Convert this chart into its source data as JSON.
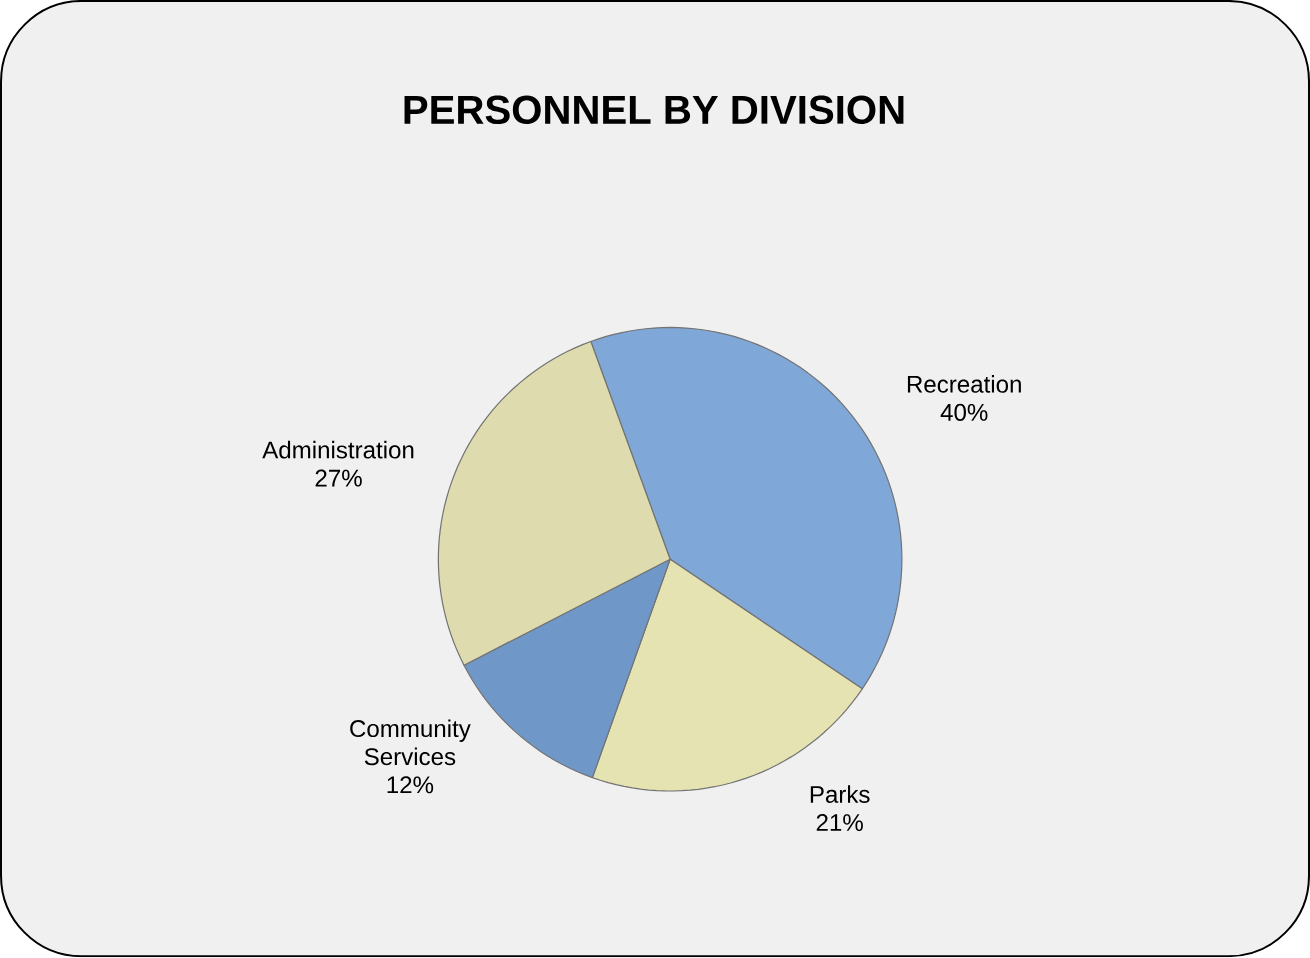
{
  "chart_data": {
    "type": "pie",
    "title": "PERSONNEL BY DIVISION",
    "categories": [
      "Recreation",
      "Parks",
      "Community Services",
      "Administration"
    ],
    "values": [
      40,
      21,
      12,
      27
    ],
    "value_labels": [
      "40%",
      "21%",
      "12%",
      "27%"
    ],
    "colors": [
      "#7fa8d9",
      "#e6e3b3",
      "#6f98c9",
      "#dedcae"
    ]
  }
}
